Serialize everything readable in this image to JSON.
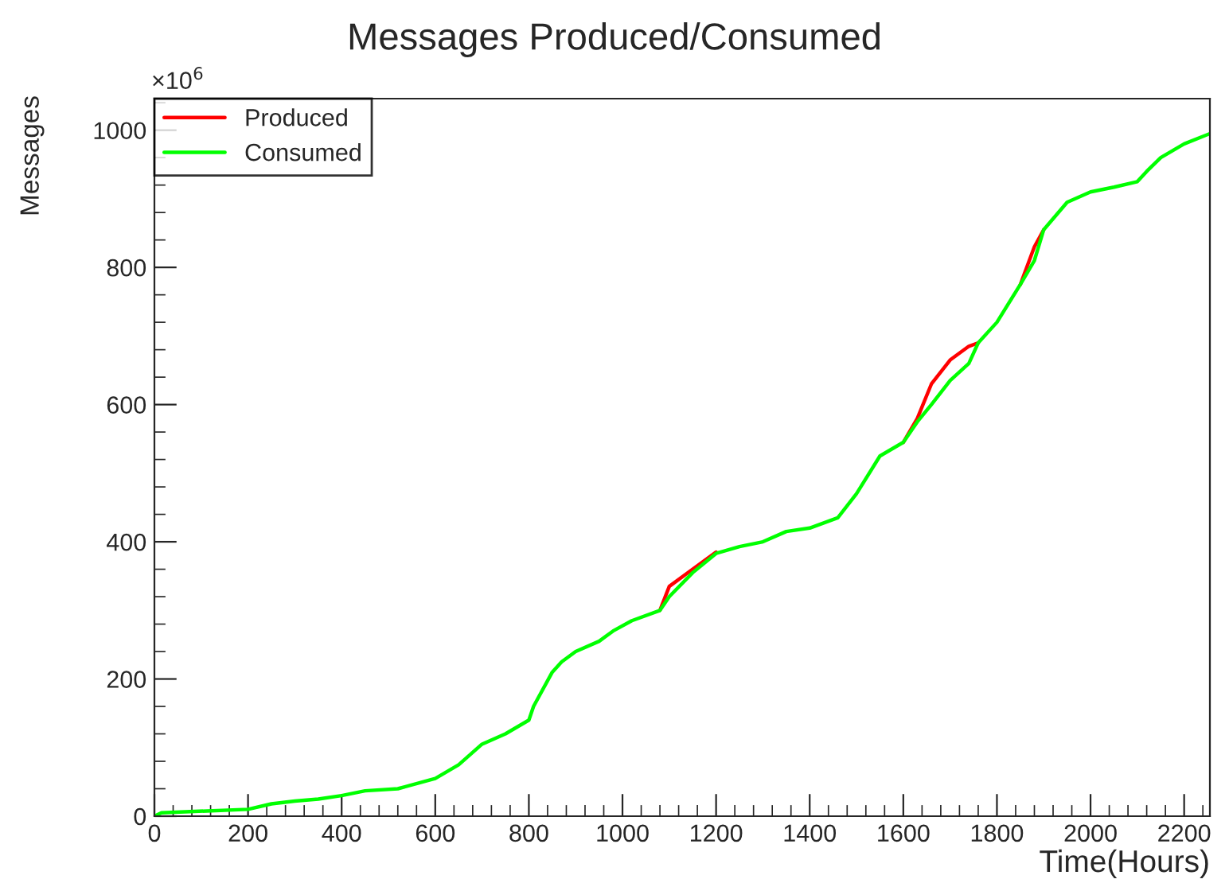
{
  "chart_data": {
    "type": "line",
    "title": "Messages Produced/Consumed",
    "xlabel": "Time(Hours)",
    "ylabel": "Messages",
    "annotations": [
      "×10$^{6}$"
    ],
    "xlim": [
      0,
      2255
    ],
    "xticks": [
      0,
      200,
      400,
      600,
      800,
      1000,
      1200,
      1400,
      1600,
      1800,
      2000,
      2200
    ],
    "ylim": [
      0,
      1046
    ],
    "yticks": [
      0,
      200,
      400,
      600,
      800,
      1000
    ],
    "grid": false,
    "legend": "top left",
    "marker": "none",
    "line_style": "solid",
    "x": [
      0,
      15,
      200,
      250,
      300,
      350,
      400,
      450,
      520,
      600,
      650,
      700,
      750,
      800,
      810,
      850,
      870,
      900,
      950,
      980,
      1020,
      1080,
      1100,
      1150,
      1200,
      1250,
      1300,
      1350,
      1400,
      1460,
      1500,
      1550,
      1600,
      1630,
      1660,
      1700,
      1740,
      1760,
      1800,
      1850,
      1880,
      1900,
      1950,
      2000,
      2050,
      2100,
      2120,
      2150,
      2200,
      2255
    ],
    "series": [
      {
        "name": "Produced",
        "color": "#ff0000",
        "values": [
          null,
          null,
          null,
          null,
          null,
          null,
          null,
          null,
          null,
          null,
          null,
          null,
          null,
          null,
          null,
          null,
          null,
          null,
          null,
          null,
          null,
          300,
          335,
          360,
          385,
          null,
          null,
          null,
          null,
          null,
          null,
          null,
          545,
          580,
          630,
          665,
          685,
          690,
          null,
          775,
          830,
          855,
          null,
          null,
          null,
          null,
          null,
          null,
          null,
          null
        ]
      },
      {
        "name": "Consumed",
        "color": "#00ff00",
        "values": [
          0,
          5,
          10,
          18,
          22,
          25,
          30,
          37,
          40,
          55,
          75,
          105,
          120,
          140,
          160,
          210,
          225,
          240,
          255,
          270,
          285,
          300,
          320,
          355,
          383,
          393,
          400,
          415,
          420,
          435,
          470,
          525,
          545,
          575,
          600,
          635,
          660,
          690,
          720,
          775,
          810,
          855,
          895,
          910,
          917,
          925,
          940,
          960,
          980,
          995
        ]
      }
    ]
  }
}
